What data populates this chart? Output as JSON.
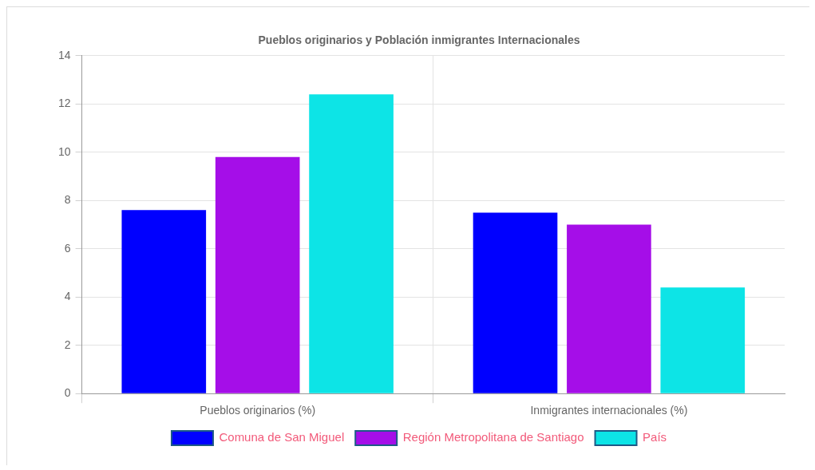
{
  "chart_data": {
    "type": "bar",
    "title": "Pueblos originarios y Población inmigrantes Internacionales",
    "categories": [
      "Pueblos originarios (%)",
      "Inmigrantes internacionales (%)"
    ],
    "series": [
      {
        "name": "Comuna de San Miguel",
        "color": "#0000ff",
        "values": [
          7.6,
          7.5
        ]
      },
      {
        "name": "Región Metropolitana de Santiago",
        "color": "#a50ee8",
        "values": [
          9.8,
          7.0
        ]
      },
      {
        "name": "País",
        "color": "#0de4e6",
        "values": [
          12.4,
          4.4
        ]
      }
    ],
    "ylim": [
      0,
      14
    ],
    "yticks": [
      0,
      2,
      4,
      6,
      8,
      10,
      12,
      14
    ],
    "grid": true,
    "legend": "bottom"
  }
}
